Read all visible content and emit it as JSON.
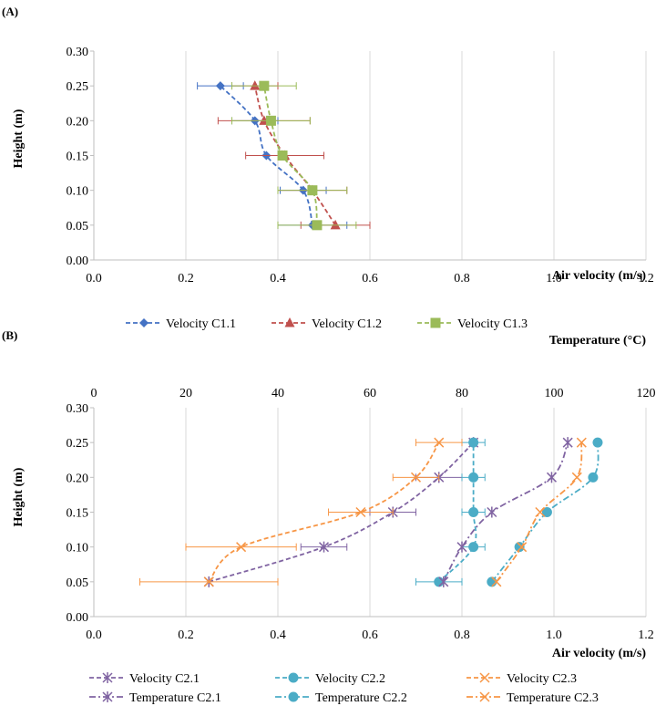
{
  "chart_data": [
    {
      "type": "line",
      "panel_label": "(A)",
      "xlabel": "Air velocity (m/s)",
      "ylabel": "Height (m)",
      "xlim": [
        0,
        1.2
      ],
      "ylim": [
        0,
        0.3
      ],
      "x_ticks": [
        "0.0",
        "0.2",
        "0.4",
        "0.6",
        "0.8",
        "1.0",
        "1.2"
      ],
      "y_ticks": [
        "0.00",
        "0.05",
        "0.10",
        "0.15",
        "0.20",
        "0.25",
        "0.30"
      ],
      "grid": "vertical",
      "legend_position": "bottom",
      "series": [
        {
          "name": "Velocity C1.1",
          "color": "#4472c4",
          "marker": "diamond",
          "dash": "dashed",
          "points": [
            {
              "x": 0.475,
              "y": 0.05
            },
            {
              "x": 0.455,
              "y": 0.1
            },
            {
              "x": 0.375,
              "y": 0.15
            },
            {
              "x": 0.35,
              "y": 0.2
            },
            {
              "x": 0.275,
              "y": 0.25
            }
          ],
          "xerr": [
            0.075,
            0.05,
            0.0,
            0.05,
            0.05
          ]
        },
        {
          "name": "Velocity C1.2",
          "color": "#c0504d",
          "marker": "triangle",
          "dash": "dashed",
          "points": [
            {
              "x": 0.525,
              "y": 0.05
            },
            {
              "x": 0.475,
              "y": 0.1
            },
            {
              "x": 0.415,
              "y": 0.15
            },
            {
              "x": 0.37,
              "y": 0.2
            },
            {
              "x": 0.35,
              "y": 0.25
            }
          ],
          "xerr": [
            0.075,
            0.075,
            0.085,
            0.1,
            0.05
          ]
        },
        {
          "name": "Velocity C1.3",
          "color": "#9bbb59",
          "marker": "square",
          "dash": "dashed",
          "points": [
            {
              "x": 0.485,
              "y": 0.05
            },
            {
              "x": 0.475,
              "y": 0.1
            },
            {
              "x": 0.41,
              "y": 0.15
            },
            {
              "x": 0.385,
              "y": 0.2
            },
            {
              "x": 0.37,
              "y": 0.25
            }
          ],
          "xerr": [
            0.085,
            0.075,
            0.0,
            0.085,
            0.07
          ]
        }
      ]
    },
    {
      "type": "line",
      "panel_label": "(B)",
      "xlabel": "Air velocity (m/s)",
      "x2label": "Temperature (°C)",
      "ylabel": "Height (m)",
      "xlim": [
        0,
        1.2
      ],
      "x2lim": [
        0,
        120
      ],
      "ylim": [
        0,
        0.3
      ],
      "x_ticks": [
        "0.0",
        "0.2",
        "0.4",
        "0.6",
        "0.8",
        "1.0",
        "1.2"
      ],
      "x2_ticks": [
        "0",
        "20",
        "40",
        "60",
        "80",
        "100",
        "120"
      ],
      "y_ticks": [
        "0.00",
        "0.05",
        "0.10",
        "0.15",
        "0.20",
        "0.25",
        "0.30"
      ],
      "grid": "vertical",
      "legend_position": "bottom",
      "series": [
        {
          "name": "Velocity C2.1",
          "axis": "velocity",
          "color": "#8064a2",
          "marker": "asterisk",
          "dash": "dashed",
          "points": [
            {
              "x": 0.25,
              "y": 0.05
            },
            {
              "x": 0.5,
              "y": 0.1
            },
            {
              "x": 0.65,
              "y": 0.15
            },
            {
              "x": 0.75,
              "y": 0.2
            },
            {
              "x": 0.825,
              "y": 0.25
            }
          ],
          "xerr": [
            0.0,
            0.05,
            0.05,
            0.05,
            0.0
          ]
        },
        {
          "name": "Velocity C2.2",
          "axis": "velocity",
          "color": "#4bacc6",
          "marker": "circle",
          "dash": "dashed",
          "points": [
            {
              "x": 0.75,
              "y": 0.05
            },
            {
              "x": 0.825,
              "y": 0.1
            },
            {
              "x": 0.825,
              "y": 0.15
            },
            {
              "x": 0.825,
              "y": 0.2
            },
            {
              "x": 0.825,
              "y": 0.25
            }
          ],
          "xerr": [
            0.05,
            0.025,
            0.025,
            0.025,
            0.025
          ]
        },
        {
          "name": "Velocity C2.3",
          "axis": "velocity",
          "color": "#f79646",
          "marker": "x",
          "dash": "dashed",
          "points": [
            {
              "x": 0.25,
              "y": 0.05
            },
            {
              "x": 0.32,
              "y": 0.1
            },
            {
              "x": 0.58,
              "y": 0.15
            },
            {
              "x": 0.7,
              "y": 0.2
            },
            {
              "x": 0.75,
              "y": 0.25
            }
          ],
          "xerr": [
            0.15,
            0.12,
            0.07,
            0.05,
            0.05
          ]
        },
        {
          "name": "Temperature C2.1",
          "axis": "temperature",
          "color": "#8064a2",
          "marker": "asterisk",
          "dash": "dashdot",
          "points": [
            {
              "x": 76,
              "y": 0.05
            },
            {
              "x": 80,
              "y": 0.1
            },
            {
              "x": 86.5,
              "y": 0.15
            },
            {
              "x": 99.5,
              "y": 0.2
            },
            {
              "x": 103,
              "y": 0.25
            }
          ]
        },
        {
          "name": "Temperature C2.2",
          "axis": "temperature",
          "color": "#4bacc6",
          "marker": "circle",
          "dash": "dashdot",
          "points": [
            {
              "x": 86.5,
              "y": 0.05
            },
            {
              "x": 92.5,
              "y": 0.1
            },
            {
              "x": 98.5,
              "y": 0.15
            },
            {
              "x": 108.5,
              "y": 0.2
            },
            {
              "x": 109.5,
              "y": 0.25
            }
          ]
        },
        {
          "name": "Temperature C2.3",
          "axis": "temperature",
          "color": "#f79646",
          "marker": "x",
          "dash": "dashdot",
          "points": [
            {
              "x": 87.5,
              "y": 0.05
            },
            {
              "x": 93,
              "y": 0.1
            },
            {
              "x": 97,
              "y": 0.15
            },
            {
              "x": 105,
              "y": 0.2
            },
            {
              "x": 106,
              "y": 0.25
            }
          ]
        }
      ]
    }
  ]
}
